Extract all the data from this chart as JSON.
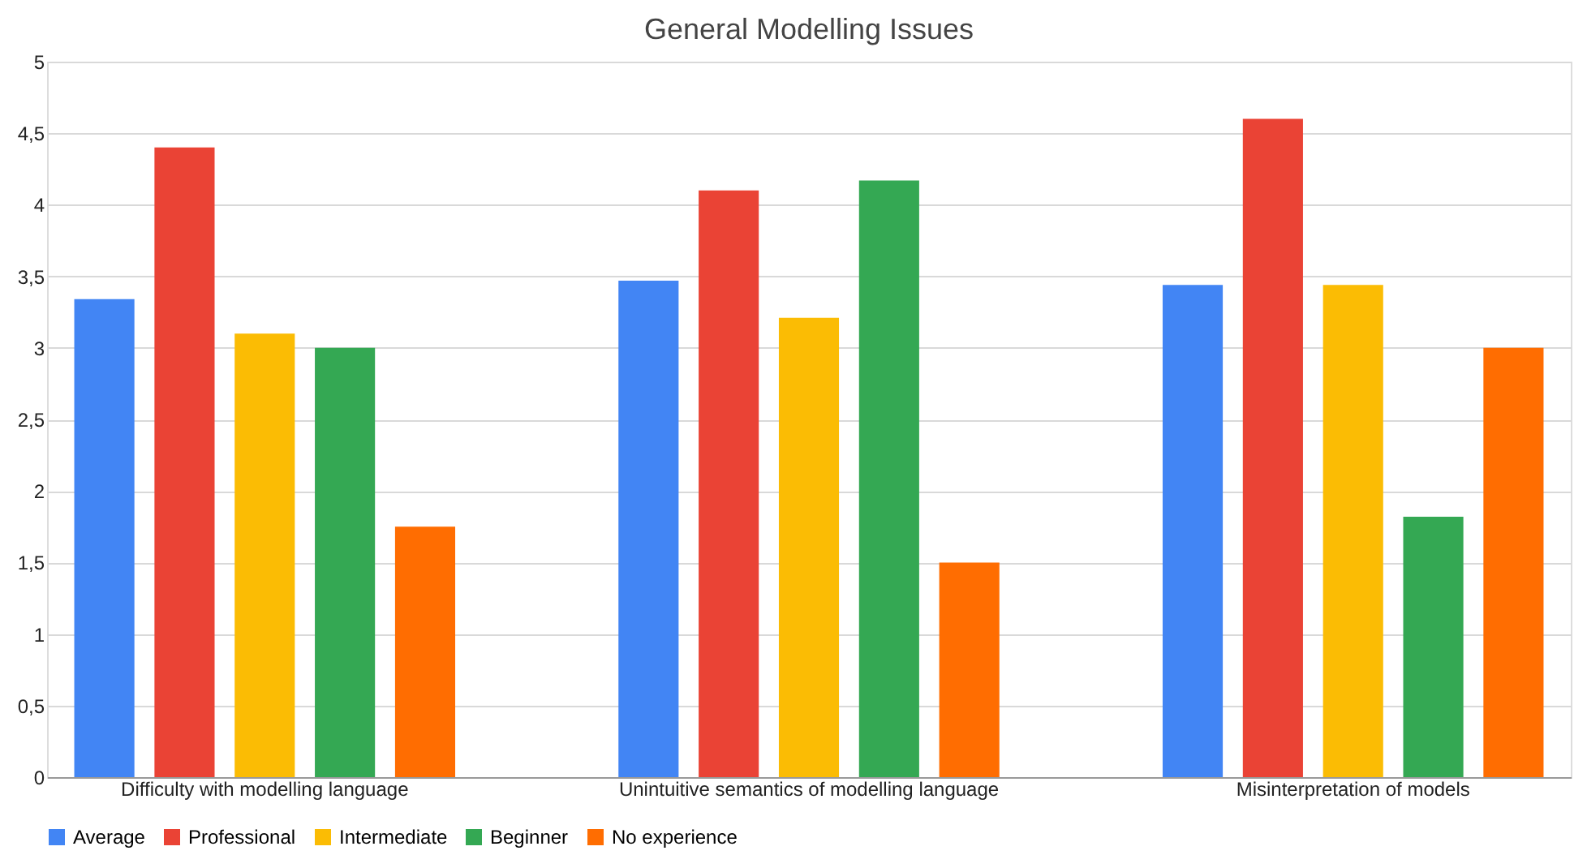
{
  "chart_data": {
    "type": "bar",
    "title": "General Modelling Issues",
    "categories": [
      "Difficulty with modelling language",
      "Unintuitive semantics of modelling language",
      "Misinterpretation of models"
    ],
    "series": [
      {
        "name": "Average",
        "color": "#4285f4",
        "values": [
          3.34,
          3.47,
          3.44
        ]
      },
      {
        "name": "Professional",
        "color": "#ea4335",
        "values": [
          4.4,
          4.1,
          4.6
        ]
      },
      {
        "name": "Intermediate",
        "color": "#fbbc04",
        "values": [
          3.1,
          3.21,
          3.44
        ]
      },
      {
        "name": "Beginner",
        "color": "#34a853",
        "values": [
          3.0,
          4.17,
          1.82
        ]
      },
      {
        "name": "No experience",
        "color": "#ff6d01",
        "values": [
          1.75,
          1.5,
          3.0
        ]
      }
    ],
    "ylim": [
      0,
      5
    ],
    "yticks": [
      0,
      {
        "value": 0.5,
        "label": "0,5"
      },
      1,
      {
        "value": 1.5,
        "label": "1,5"
      },
      2,
      {
        "value": 2.5,
        "label": "2,5"
      },
      3,
      {
        "value": 3.5,
        "label": "3,5"
      },
      4,
      {
        "value": 4.5,
        "label": "4,5"
      },
      5
    ],
    "grid": "y",
    "legend": "bottom"
  }
}
